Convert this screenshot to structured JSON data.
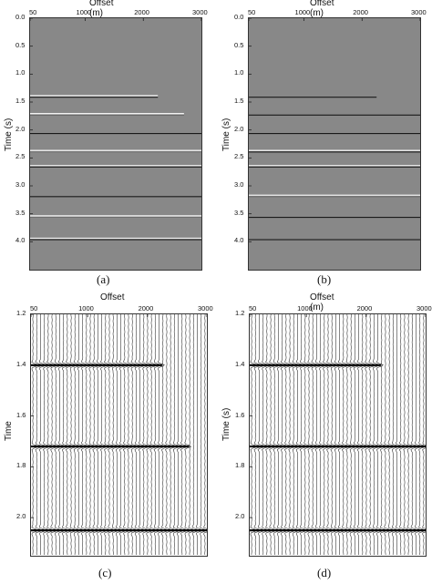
{
  "panels": [
    {
      "id": "a",
      "caption": "(a)",
      "kind": "section",
      "x_title": "Offset (m)",
      "y_title": "Time (s)",
      "x_ticks": [
        "50",
        "1000",
        "2000",
        "3000"
      ],
      "x_tick_values": [
        50,
        1000,
        2000,
        3000
      ],
      "y_ticks": [
        "0.0",
        "0.5",
        "1.0",
        "1.5",
        "2.0",
        "2.5",
        "3.0",
        "3.5",
        "4.0"
      ],
      "y_tick_values": [
        0.0,
        0.5,
        1.0,
        1.5,
        2.0,
        2.5,
        3.0,
        3.5,
        4.0
      ],
      "x_range": [
        50,
        3000
      ],
      "y_range": [
        0.0,
        4.5
      ],
      "background": "#888888",
      "events": [
        {
          "t": 1.4,
          "x_end": 2250,
          "style": "light-dark"
        },
        {
          "t": 1.72,
          "x_end": 2700,
          "style": "light"
        },
        {
          "t": 2.05,
          "x_end": 3000,
          "style": "dark"
        },
        {
          "t": 2.38,
          "x_end": 3000,
          "style": "light"
        },
        {
          "t": 2.65,
          "x_end": 3000,
          "style": "light-dark"
        },
        {
          "t": 3.18,
          "x_end": 3000,
          "style": "dark"
        },
        {
          "t": 3.55,
          "x_end": 3000,
          "style": "light"
        },
        {
          "t": 3.95,
          "x_end": 3000,
          "style": "light-dark"
        }
      ]
    },
    {
      "id": "b",
      "caption": "(b)",
      "kind": "section",
      "x_title": "Offset (m)",
      "y_title": "Time (s)",
      "x_ticks": [
        "50",
        "1000",
        "2000",
        "3000"
      ],
      "x_tick_values": [
        50,
        1000,
        2000,
        3000
      ],
      "y_ticks": [
        "0.0",
        "0.5",
        "1.0",
        "1.5",
        "2.0",
        "2.5",
        "3.0",
        "3.5",
        "4.0"
      ],
      "y_tick_values": [
        0.0,
        0.5,
        1.0,
        1.5,
        2.0,
        2.5,
        3.0,
        3.5,
        4.0
      ],
      "x_range": [
        50,
        3000
      ],
      "y_range": [
        0.0,
        4.5
      ],
      "background": "#888888",
      "events": [
        {
          "t": 1.4,
          "x_end": 2250,
          "style": "dark"
        },
        {
          "t": 1.72,
          "x_end": 3000,
          "style": "dark"
        },
        {
          "t": 2.05,
          "x_end": 3000,
          "style": "dark"
        },
        {
          "t": 2.38,
          "x_end": 3000,
          "style": "light-dark"
        },
        {
          "t": 2.65,
          "x_end": 3000,
          "style": "light-dark"
        },
        {
          "t": 3.18,
          "x_end": 3000,
          "style": "light"
        },
        {
          "t": 3.55,
          "x_end": 3000,
          "style": "dark"
        },
        {
          "t": 3.95,
          "x_end": 3000,
          "style": "dark"
        }
      ]
    },
    {
      "id": "c",
      "caption": "(c)",
      "kind": "wiggle",
      "x_title": "Offset",
      "y_title": "Time",
      "x_ticks": [
        "50",
        "1000",
        "2000",
        "3000"
      ],
      "x_tick_values": [
        50,
        1000,
        2000,
        3000
      ],
      "y_ticks": [
        "1.2",
        "1.4",
        "1.6",
        "1.8",
        "2.0"
      ],
      "y_tick_values": [
        1.2,
        1.4,
        1.6,
        1.8,
        2.0
      ],
      "x_range": [
        50,
        3000
      ],
      "y_range": [
        1.2,
        2.15
      ],
      "traces": 46,
      "events": [
        {
          "t": 1.4,
          "x_end": 2250
        },
        {
          "t": 1.72,
          "x_end": 2700
        },
        {
          "t": 2.05,
          "x_end": 3000
        }
      ]
    },
    {
      "id": "d",
      "caption": "(d)",
      "kind": "wiggle",
      "x_title": "Offset (m)",
      "y_title": "Time (s)",
      "x_ticks": [
        "50",
        "1000",
        "2000",
        "3000"
      ],
      "x_tick_values": [
        50,
        1000,
        2000,
        3000
      ],
      "y_ticks": [
        "1.2",
        "1.4",
        "1.6",
        "1.8",
        "2.0"
      ],
      "y_tick_values": [
        1.2,
        1.4,
        1.6,
        1.8,
        2.0
      ],
      "x_range": [
        50,
        3000
      ],
      "y_range": [
        1.2,
        2.15
      ],
      "traces": 46,
      "events": [
        {
          "t": 1.4,
          "x_end": 2250
        },
        {
          "t": 1.72,
          "x_end": 3000
        },
        {
          "t": 2.05,
          "x_end": 3000
        }
      ]
    }
  ]
}
